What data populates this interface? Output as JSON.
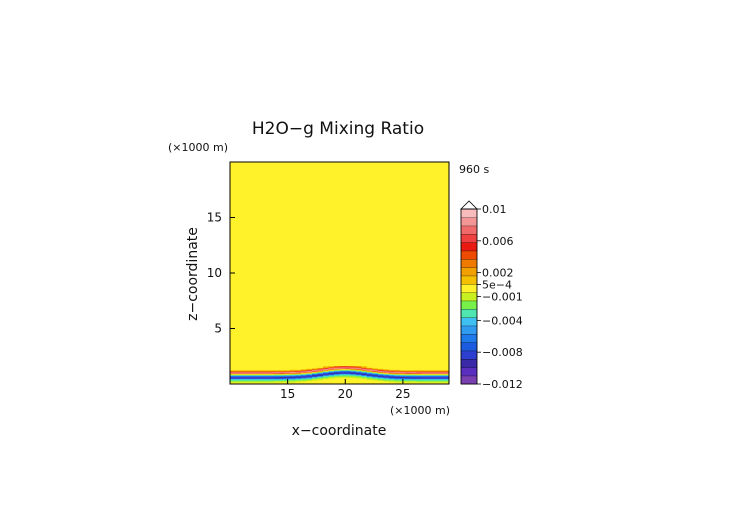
{
  "chart_data": {
    "type": "heatmap",
    "title": "H2O−g Mixing Ratio",
    "time_label": "960 s",
    "xlabel": "x−coordinate",
    "ylabel": "z−coordinate",
    "x_unit": "(×1000 m)",
    "y_unit": "(×1000 m)",
    "xlim": [
      10,
      29
    ],
    "ylim": [
      0,
      20
    ],
    "x_ticks": [
      15,
      20,
      25
    ],
    "y_ticks": [
      5,
      10,
      15
    ],
    "background_value": 0.0,
    "anomaly_profile": [
      {
        "z": 0.0,
        "value": 0.0005
      },
      {
        "z": 0.25,
        "value": -0.001
      },
      {
        "z": 0.45,
        "value": -0.004
      },
      {
        "z": 0.6,
        "value": -0.01
      },
      {
        "z": 0.8,
        "value": -0.004
      },
      {
        "z": 0.95,
        "value": 0.002
      },
      {
        "z": 1.05,
        "value": 0.01
      },
      {
        "z": 1.15,
        "value": 0.004
      },
      {
        "z": 1.3,
        "value": 0.0
      }
    ],
    "hill_peak_x": 20,
    "hill_height_km": 0.45,
    "colorbar": {
      "labels": [
        "0.01",
        "0.006",
        "0.002",
        "5e−4",
        "−0.001",
        "−0.004",
        "−0.008",
        "−0.012"
      ],
      "label_values": [
        0.01,
        0.006,
        0.002,
        0.0005,
        -0.001,
        -0.004,
        -0.008,
        -0.012
      ],
      "colors": [
        "#7a3fb0",
        "#5a2fc0",
        "#3a2aa8",
        "#2d3fd0",
        "#1a5be0",
        "#1e7aea",
        "#2f9af0",
        "#3fc0f4",
        "#4fe6b0",
        "#77f04a",
        "#c8f020",
        "#fff22a",
        "#f4c000",
        "#f0a000",
        "#f07a00",
        "#ee4a00",
        "#ea1a10",
        "#f04040",
        "#f06a6a",
        "#f49696",
        "#f8bcbc"
      ]
    }
  }
}
